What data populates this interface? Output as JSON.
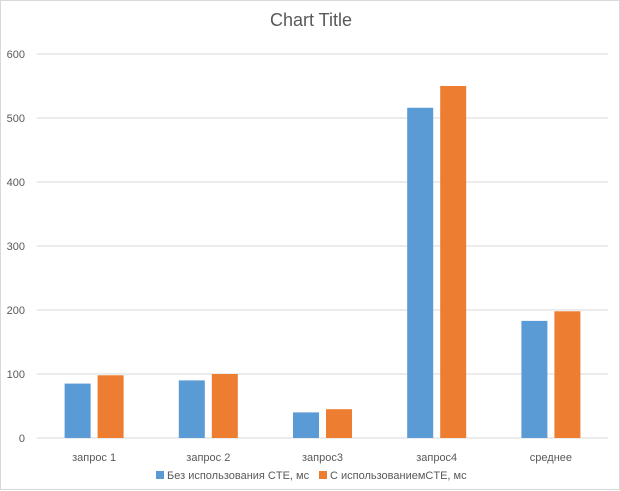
{
  "chart_data": {
    "type": "bar",
    "title": "Chart Title",
    "xlabel": "",
    "ylabel": "",
    "categories": [
      "запрос 1",
      "запрос  2",
      "запрос3",
      "запрос4",
      "среднее"
    ],
    "series": [
      {
        "name": "Без использования CTE, мс",
        "color": "#5b9bd5",
        "values": [
          85,
          90,
          40,
          516,
          183
        ]
      },
      {
        "name": "С использованиемCTE, мс",
        "color": "#ed7d31",
        "values": [
          98,
          100,
          45,
          550,
          198
        ]
      }
    ],
    "ylim": [
      0,
      600
    ],
    "yticks": [
      0,
      100,
      200,
      300,
      400,
      500,
      600
    ],
    "grid": true,
    "legend_position": "bottom"
  }
}
